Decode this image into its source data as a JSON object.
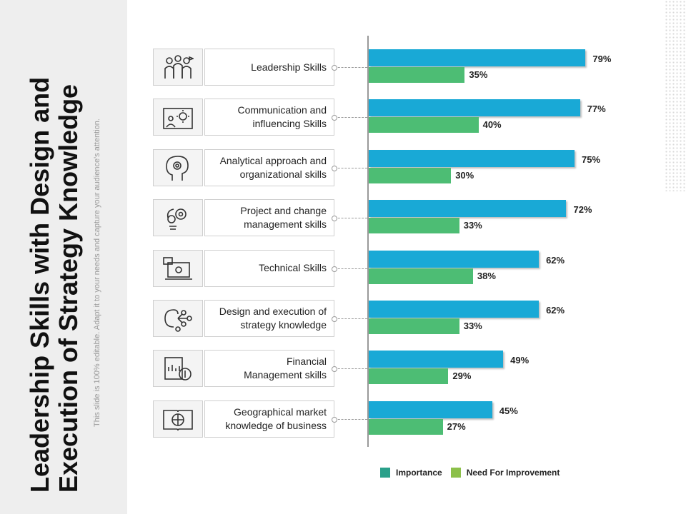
{
  "title": {
    "line1": "Leadership Skills with Design and",
    "line2": "Execution of Strategy Knowledge"
  },
  "subtitle": "This slide is 100% editable. Adapt it to your needs and capture your audience's attention.",
  "colors": {
    "importance": "#19a9d6",
    "need": "#4dbd74",
    "legend_importance": "#2aa08a",
    "legend_need": "#8cc04a"
  },
  "chart_data": {
    "type": "bar",
    "orientation": "horizontal",
    "categories": [
      "Leadership Skills",
      "Communication and influencing Skills",
      "Analytical approach and organizational skills",
      "Project and change management skills",
      "Technical Skills",
      "Design and execution of strategy knowledge",
      "Financial Management skills",
      "Geographical market knowledge of business"
    ],
    "category_lines": [
      [
        "Leadership Skills"
      ],
      [
        "Communication and",
        "influencing Skills"
      ],
      [
        "Analytical approach and",
        "organizational skills"
      ],
      [
        "Project and change",
        "management skills"
      ],
      [
        "Technical Skills"
      ],
      [
        "Design and execution of",
        "strategy knowledge"
      ],
      [
        "Financial",
        "Management skills"
      ],
      [
        "Geographical market",
        "knowledge of business"
      ]
    ],
    "icons": [
      "leadership-team-icon",
      "presentation-screen-icon",
      "head-gear-icon",
      "lightbulb-gears-icon",
      "laptop-settings-icon",
      "brain-network-icon",
      "financial-report-icon",
      "world-map-book-icon"
    ],
    "series": [
      {
        "name": "Importance",
        "values": [
          79,
          77,
          75,
          72,
          62,
          62,
          49,
          45
        ],
        "labels": [
          "79%",
          "77%",
          "75%",
          "72%",
          "62%",
          "62%",
          "49%",
          "45%"
        ]
      },
      {
        "name": "Need For Improvement",
        "values": [
          35,
          40,
          30,
          33,
          38,
          33,
          29,
          27
        ],
        "labels": [
          "35%",
          "40%",
          "30%",
          "33%",
          "38%",
          "33%",
          "29%",
          "27%"
        ]
      }
    ],
    "unit": "%",
    "xlim": [
      0,
      100
    ],
    "legend": {
      "position": "bottom",
      "items": [
        "Importance",
        "Need For Improvement"
      ]
    }
  }
}
